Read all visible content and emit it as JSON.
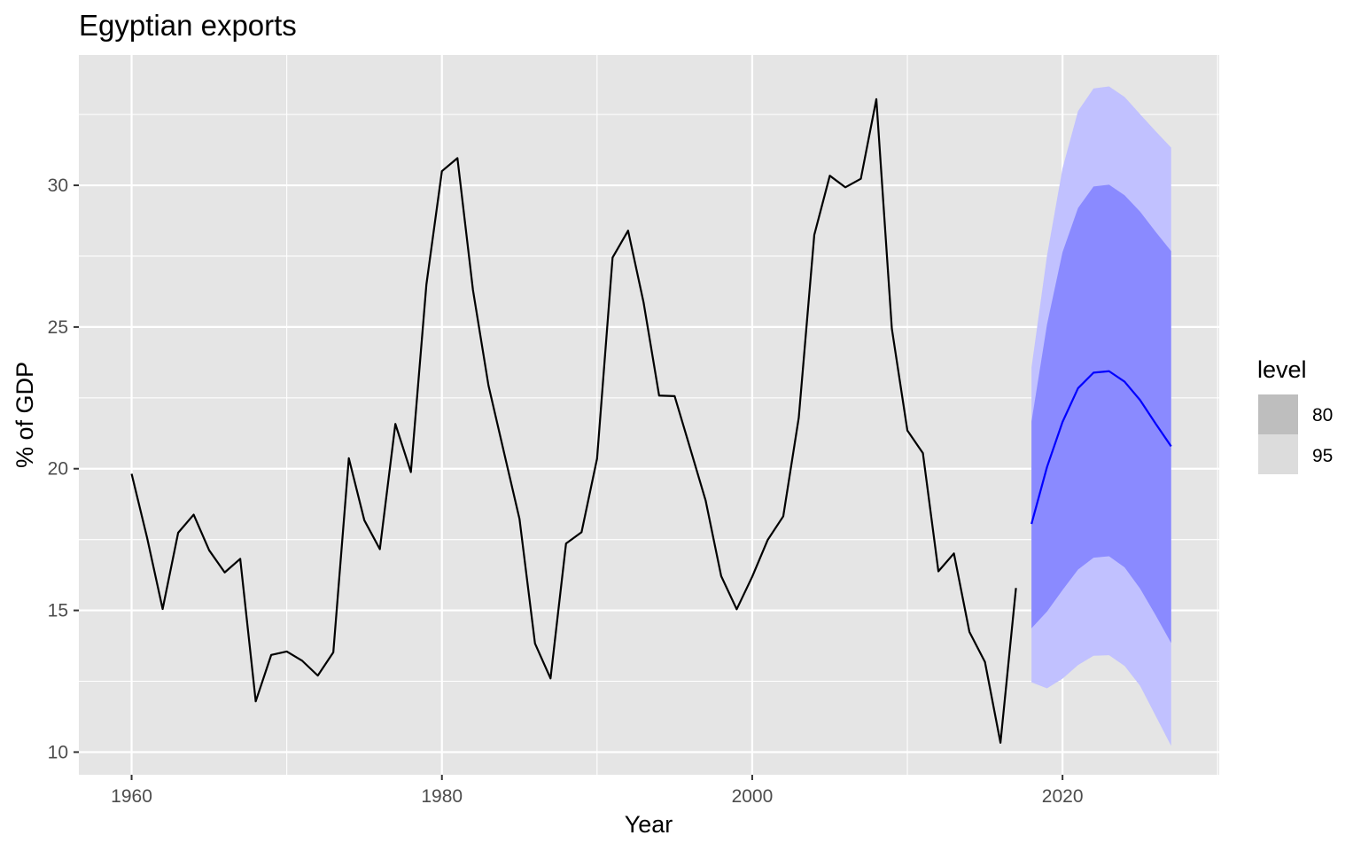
{
  "chart_data": {
    "type": "line",
    "title": "Egyptian exports",
    "xlabel": "Year",
    "ylabel": "% of GDP",
    "xlim": [
      1956.6,
      2030.1
    ],
    "ylim": [
      9.2,
      34.6
    ],
    "x_ticks": [
      1960,
      1980,
      2000,
      2020
    ],
    "y_ticks": [
      10,
      15,
      20,
      25,
      30
    ],
    "grid": true,
    "legend": {
      "title": "level",
      "placement": "right",
      "entries": [
        {
          "label": "80",
          "fill": "#bebebe"
        },
        {
          "label": "95",
          "fill": "#dcdcdc"
        }
      ]
    },
    "series": [
      {
        "color": "#000000",
        "x": [
          1960,
          1961,
          1962,
          1963,
          1964,
          1965,
          1966,
          1967,
          1968,
          1969,
          1970,
          1971,
          1972,
          1973,
          1974,
          1975,
          1976,
          1977,
          1978,
          1979,
          1980,
          1981,
          1982,
          1983,
          1984,
          1985,
          1986,
          1987,
          1988,
          1989,
          1990,
          1991,
          1992,
          1993,
          1994,
          1995,
          1996,
          1997,
          1998,
          1999,
          2000,
          2001,
          2002,
          2003,
          2004,
          2005,
          2006,
          2007,
          2008,
          2009,
          2010,
          2011,
          2012,
          2013,
          2014,
          2015,
          2016,
          2017
        ],
        "y": [
          19.82,
          17.56,
          15.05,
          17.74,
          18.38,
          17.12,
          16.34,
          16.82,
          11.79,
          13.43,
          13.55,
          13.22,
          12.7,
          13.52,
          20.37,
          18.18,
          17.16,
          21.58,
          19.88,
          26.5,
          30.5,
          30.96,
          26.31,
          22.94,
          20.58,
          18.23,
          13.83,
          12.6,
          17.36,
          17.76,
          20.36,
          27.45,
          28.4,
          25.86,
          22.58,
          22.56,
          20.72,
          18.87,
          16.21,
          15.04,
          16.19,
          17.49,
          18.32,
          21.8,
          28.25,
          30.34,
          29.93,
          30.23,
          33.04,
          24.94,
          21.35,
          20.55,
          16.38,
          17.01,
          14.24,
          13.18,
          10.33,
          15.79
        ]
      },
      {
        "color": "#0000ff",
        "x": [
          2018,
          2019,
          2020,
          2021,
          2022,
          2023,
          2024,
          2025,
          2026,
          2027
        ],
        "y": [
          18.05,
          20.06,
          21.65,
          22.84,
          23.39,
          23.44,
          23.07,
          22.42,
          21.59,
          20.79
        ]
      }
    ],
    "forecast_intervals": [
      {
        "level": "95",
        "fill": "#c1c1ff",
        "x": [
          2018,
          2019,
          2020,
          2021,
          2022,
          2023,
          2024,
          2025,
          2026,
          2027
        ],
        "lower": [
          12.46,
          12.25,
          12.59,
          13.07,
          13.4,
          13.42,
          13.04,
          12.34,
          11.28,
          10.22
        ],
        "upper": [
          23.57,
          27.52,
          30.6,
          32.62,
          33.42,
          33.49,
          33.12,
          32.51,
          31.91,
          31.33
        ]
      },
      {
        "level": "80",
        "fill": "#8a8aff",
        "x": [
          2018,
          2019,
          2020,
          2021,
          2022,
          2023,
          2024,
          2025,
          2026,
          2027
        ],
        "lower": [
          14.37,
          14.96,
          15.72,
          16.44,
          16.86,
          16.91,
          16.52,
          15.77,
          14.83,
          13.85
        ],
        "upper": [
          21.66,
          25.09,
          27.64,
          29.2,
          29.96,
          30.02,
          29.65,
          29.07,
          28.36,
          27.68
        ]
      }
    ]
  }
}
